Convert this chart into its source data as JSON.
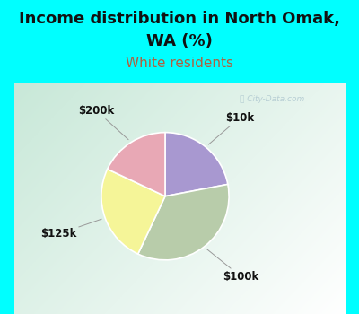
{
  "title_line1": "Income distribution in North Omak,",
  "title_line2": "WA (%)",
  "subtitle": "White residents",
  "slices": [
    {
      "label": "$10k",
      "value": 22,
      "color": "#a898d0"
    },
    {
      "label": "$100k",
      "value": 35,
      "color": "#b8ccaa"
    },
    {
      "label": "$125k",
      "value": 25,
      "color": "#f5f598"
    },
    {
      "label": "$200k",
      "value": 18,
      "color": "#e8a8b5"
    }
  ],
  "bg_top_color": "#00FFFF",
  "title_fontsize": 13,
  "title_color": "#111111",
  "subtitle_color": "#b06040",
  "subtitle_fontsize": 11,
  "watermark": "City-Data.com",
  "chart_bg_colors": [
    "#c8e8d8",
    "#e8f4ee",
    "#f8fff8"
  ],
  "label_fontsize": 8.5
}
